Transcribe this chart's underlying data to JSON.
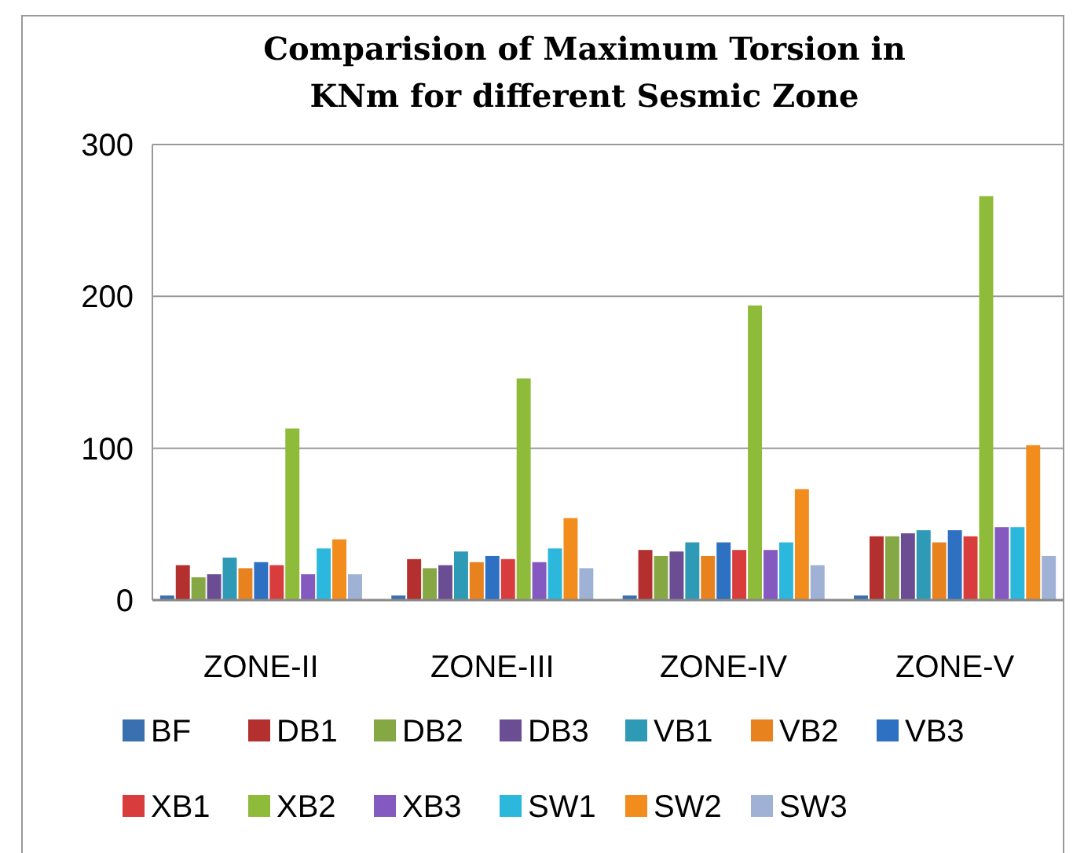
{
  "chart_data": {
    "type": "bar",
    "title": "Comparision of Maximum Torsion in KNm for different Sesmic Zone",
    "categories": [
      "ZONE-II",
      "ZONE-III",
      "ZONE-IV",
      "ZONE-V"
    ],
    "series": [
      {
        "name": "BF",
        "color": "#3a6fb0",
        "values": [
          3,
          3,
          3,
          3
        ]
      },
      {
        "name": "DB1",
        "color": "#b3302e",
        "values": [
          23,
          27,
          33,
          42
        ]
      },
      {
        "name": "DB2",
        "color": "#86a844",
        "values": [
          15,
          21,
          29,
          42
        ]
      },
      {
        "name": "DB3",
        "color": "#6b4d93",
        "values": [
          17,
          23,
          32,
          44
        ]
      },
      {
        "name": "VB1",
        "color": "#2f9ab5",
        "values": [
          28,
          32,
          38,
          46
        ]
      },
      {
        "name": "VB2",
        "color": "#e8821e",
        "values": [
          21,
          25,
          29,
          38
        ]
      },
      {
        "name": "VB3",
        "color": "#2e70c2",
        "values": [
          25,
          29,
          38,
          46
        ]
      },
      {
        "name": "XB1",
        "color": "#d83c3c",
        "values": [
          23,
          27,
          33,
          42
        ]
      },
      {
        "name": "XB2",
        "color": "#8fbb3a",
        "values": [
          113,
          146,
          194,
          266
        ]
      },
      {
        "name": "XB3",
        "color": "#8459c0",
        "values": [
          17,
          25,
          33,
          48
        ]
      },
      {
        "name": "SW1",
        "color": "#2bb8dc",
        "values": [
          34,
          34,
          38,
          48
        ]
      },
      {
        "name": "SW2",
        "color": "#f28c1c",
        "values": [
          40,
          54,
          73,
          102
        ]
      },
      {
        "name": "SW3",
        "color": "#9fb2d6",
        "values": [
          17,
          21,
          23,
          29
        ]
      }
    ],
    "ylim": [
      0,
      300
    ],
    "yticks": [
      0,
      100,
      200,
      300
    ],
    "grid": "y",
    "legend": "bottom"
  }
}
